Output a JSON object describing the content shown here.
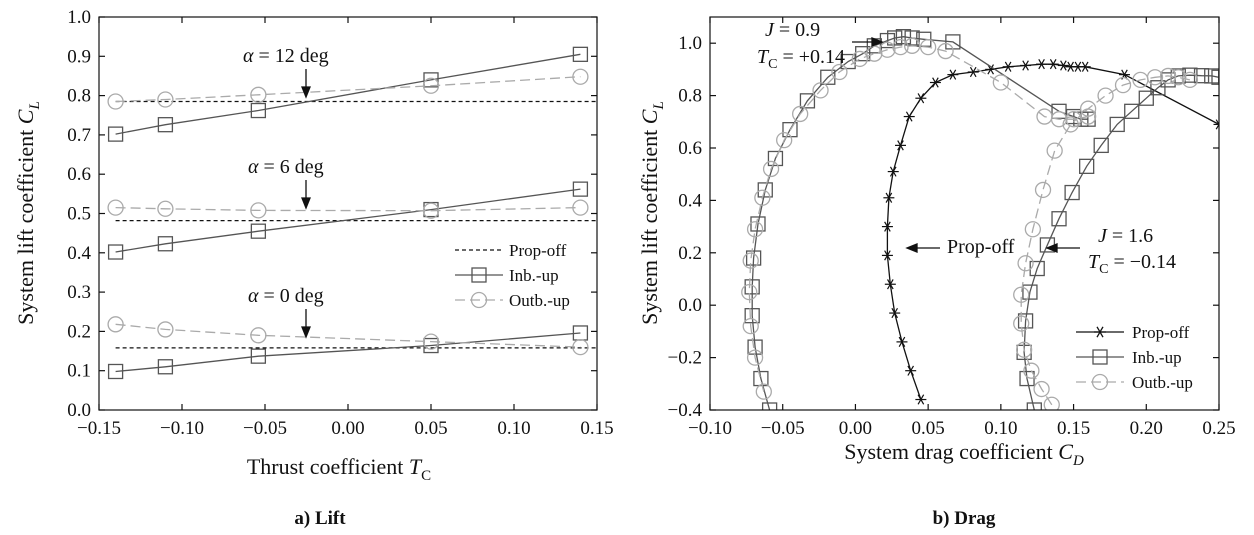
{
  "chart_data": [
    {
      "type": "line",
      "caption": "a) Lift",
      "xlabel": "Thrust coefficient",
      "xlabel_symbol": "T",
      "xlabel_sub": "C",
      "ylabel": "System lift coefficient",
      "ylabel_symbol": "C",
      "ylabel_sub": "L",
      "xlim": [
        -0.15,
        0.15
      ],
      "ylim": [
        0.0,
        1.0
      ],
      "xticks": [
        "−0.15",
        "−0.10",
        "−0.05",
        "0.00",
        "0.05",
        "0.10",
        "0.15"
      ],
      "yticks": [
        "0.0",
        "0.1",
        "0.2",
        "0.3",
        "0.4",
        "0.5",
        "0.6",
        "0.7",
        "0.8",
        "0.9",
        "1.0"
      ],
      "grid": false,
      "legend_position": "lower-right of middle band",
      "legend": [
        "Prop-off",
        "Inb.-up",
        "Outb.-up"
      ],
      "annotations": [
        {
          "symbol": "α",
          "text": " = 12 deg"
        },
        {
          "symbol": "α",
          "text": " = 6 deg"
        },
        {
          "symbol": "α",
          "text": " = 0 deg"
        }
      ],
      "series": [
        {
          "name": "Prop-off",
          "style": "dashed",
          "groups": [
            {
              "x": [
                -0.14,
                0.15
              ],
              "y": [
                0.785,
                0.785
              ]
            },
            {
              "x": [
                -0.14,
                0.15
              ],
              "y": [
                0.482,
                0.482
              ]
            },
            {
              "x": [
                -0.14,
                0.15
              ],
              "y": [
                0.158,
                0.158
              ]
            }
          ]
        },
        {
          "name": "Inb.-up",
          "style": "solid-square",
          "groups": [
            {
              "x": [
                -0.14,
                -0.11,
                -0.054,
                0.05,
                0.14
              ],
              "y": [
                0.702,
                0.726,
                0.762,
                0.84,
                0.905
              ]
            },
            {
              "x": [
                -0.14,
                -0.11,
                -0.054,
                0.05,
                0.14
              ],
              "y": [
                0.402,
                0.423,
                0.455,
                0.51,
                0.562
              ]
            },
            {
              "x": [
                -0.14,
                -0.11,
                -0.054,
                0.05,
                0.14
              ],
              "y": [
                0.098,
                0.11,
                0.137,
                0.164,
                0.196
              ]
            }
          ]
        },
        {
          "name": "Outb.-up",
          "style": "dashed-circle",
          "groups": [
            {
              "x": [
                -0.14,
                -0.11,
                -0.054,
                0.05,
                0.14
              ],
              "y": [
                0.785,
                0.79,
                0.802,
                0.825,
                0.848
              ]
            },
            {
              "x": [
                -0.14,
                -0.11,
                -0.054,
                0.05,
                0.14
              ],
              "y": [
                0.515,
                0.512,
                0.508,
                0.507,
                0.515
              ]
            },
            {
              "x": [
                -0.14,
                -0.11,
                -0.054,
                0.05,
                0.14
              ],
              "y": [
                0.218,
                0.205,
                0.19,
                0.174,
                0.16
              ]
            }
          ]
        }
      ]
    },
    {
      "type": "line",
      "caption": "b) Drag",
      "xlabel": "System drag coefficient",
      "xlabel_symbol": "C",
      "xlabel_sub": "D",
      "ylabel": "System lift coefficient",
      "ylabel_symbol": "C",
      "ylabel_sub": "L",
      "xlim": [
        -0.1,
        0.25
      ],
      "ylim": [
        -0.4,
        1.1
      ],
      "xticks": [
        "−0.10",
        "−0.05",
        "0.00",
        "0.05",
        "0.10",
        "0.15",
        "0.20",
        "0.25"
      ],
      "yticks": [
        "−0.4",
        "−0.2",
        "0.0",
        "0.2",
        "0.4",
        "0.6",
        "0.8",
        "1.0"
      ],
      "grid": false,
      "legend_position": "bottom-right",
      "legend": [
        "Prop-off",
        "Inb.-up",
        "Outb.-up"
      ],
      "annotations": [
        {
          "line1_symbol": "J",
          "line1": " = 0.9",
          "line2_symbol": "T",
          "line2_sub": "C",
          "line2": " = +0.14"
        },
        {
          "text": "Prop-off"
        },
        {
          "line1_symbol": "J",
          "line1": " = 1.6",
          "line2_symbol": "T",
          "line2_sub": "C",
          "line2": " = −0.14"
        }
      ],
      "series": [
        {
          "name": "Prop-off",
          "style": "solid-star",
          "x": [
            0.045,
            0.038,
            0.032,
            0.027,
            0.024,
            0.022,
            0.022,
            0.023,
            0.026,
            0.031,
            0.037,
            0.045,
            0.055,
            0.067,
            0.081,
            0.093,
            0.105,
            0.117,
            0.128,
            0.136,
            0.143,
            0.148,
            0.153,
            0.158,
            0.185,
            0.25
          ],
          "y": [
            -0.36,
            -0.25,
            -0.14,
            -0.03,
            0.08,
            0.19,
            0.3,
            0.41,
            0.51,
            0.61,
            0.72,
            0.79,
            0.85,
            0.88,
            0.89,
            0.9,
            0.91,
            0.915,
            0.92,
            0.92,
            0.915,
            0.91,
            0.91,
            0.91,
            0.88,
            0.69
          ]
        },
        {
          "name": "Inb.-up",
          "style": "solid-square",
          "groups": [
            {
              "x": [
                -0.059,
                -0.065,
                -0.069,
                -0.071,
                -0.071,
                -0.07,
                -0.067,
                -0.062,
                -0.055,
                -0.045,
                -0.033,
                -0.019,
                -0.005,
                0.005,
                0.013,
                0.022,
                0.027,
                0.033,
                0.039,
                0.047,
                0.067,
                0.14,
                0.15,
                0.155,
                0.16
              ],
              "y": [
                -0.4,
                -0.28,
                -0.16,
                -0.04,
                0.07,
                0.18,
                0.31,
                0.44,
                0.56,
                0.67,
                0.78,
                0.87,
                0.93,
                0.96,
                0.99,
                1.01,
                1.02,
                1.025,
                1.02,
                1.015,
                1.005,
                0.74,
                0.72,
                0.71,
                0.71
              ]
            },
            {
              "x": [
                0.123,
                0.118,
                0.116,
                0.117,
                0.12,
                0.125,
                0.132,
                0.14,
                0.149,
                0.159,
                0.169,
                0.18,
                0.19,
                0.2,
                0.208,
                0.215,
                0.222,
                0.23,
                0.238,
                0.245,
                0.25
              ],
              "y": [
                -0.4,
                -0.28,
                -0.18,
                -0.06,
                0.05,
                0.14,
                0.23,
                0.33,
                0.43,
                0.53,
                0.61,
                0.69,
                0.74,
                0.79,
                0.83,
                0.86,
                0.875,
                0.878,
                0.876,
                0.875,
                0.87
              ]
            }
          ]
        },
        {
          "name": "Outb.-up",
          "style": "dashed-circle",
          "groups": [
            {
              "x": [
                -0.063,
                -0.069,
                -0.072,
                -0.073,
                -0.072,
                -0.069,
                -0.064,
                -0.058,
                -0.049,
                -0.038,
                -0.024,
                -0.011,
                0.003,
                0.013,
                0.022,
                0.031,
                0.039,
                0.05,
                0.062,
                0.1,
                0.13,
                0.14,
                0.15,
                0.16
              ],
              "y": [
                -0.33,
                -0.2,
                -0.08,
                0.05,
                0.17,
                0.29,
                0.41,
                0.52,
                0.63,
                0.73,
                0.82,
                0.89,
                0.94,
                0.96,
                0.975,
                0.985,
                0.99,
                0.985,
                0.97,
                0.85,
                0.72,
                0.71,
                0.71,
                0.72
              ]
            },
            {
              "x": [
                0.135,
                0.128,
                0.121,
                0.116,
                0.114,
                0.114,
                0.117,
                0.122,
                0.129,
                0.137,
                0.148,
                0.16,
                0.172,
                0.184,
                0.196,
                0.206,
                0.215,
                0.222,
                0.23
              ],
              "y": [
                -0.38,
                -0.32,
                -0.25,
                -0.17,
                -0.07,
                0.04,
                0.16,
                0.29,
                0.44,
                0.59,
                0.69,
                0.75,
                0.8,
                0.84,
                0.86,
                0.87,
                0.875,
                0.87,
                0.86
              ]
            }
          ]
        }
      ]
    }
  ]
}
